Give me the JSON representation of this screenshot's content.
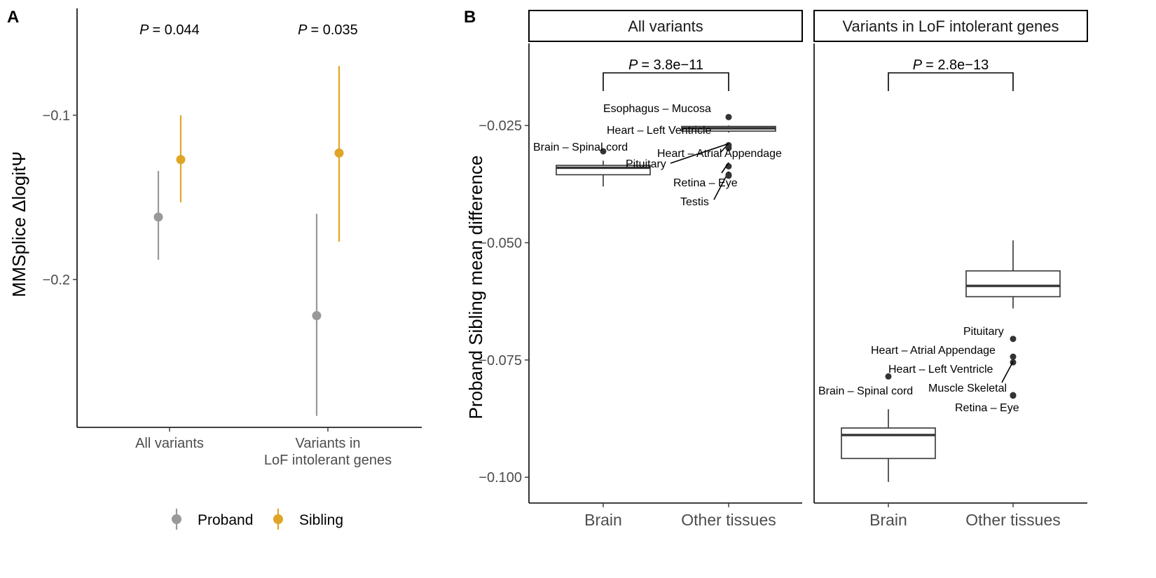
{
  "chart_data": [
    {
      "panel": "A",
      "type": "scatter",
      "ylabel": "MMSplice ΔlogitΨ",
      "ylim": [
        -0.29,
        -0.035
      ],
      "yticks": [
        -0.1,
        -0.2
      ],
      "ytick_labels": [
        "−0.1",
        "−0.2"
      ],
      "categories": [
        "All variants",
        "Variants in\nLoF intolerant genes"
      ],
      "series": [
        {
          "name": "Proband",
          "color": "#999999",
          "values": [
            -0.162,
            -0.222
          ],
          "lower": [
            -0.188,
            -0.283
          ],
          "upper": [
            -0.134,
            -0.16
          ]
        },
        {
          "name": "Sibling",
          "color": "#e0a526",
          "values": [
            -0.127,
            -0.123
          ],
          "lower": [
            -0.153,
            -0.177
          ],
          "upper": [
            -0.1,
            -0.07
          ]
        }
      ],
      "annotations": [
        {
          "category": 0,
          "prefix": "P",
          "text": "= 0.044"
        },
        {
          "category": 1,
          "prefix": "P",
          "text": "= 0.035"
        }
      ],
      "legend_position": "bottom"
    },
    {
      "panel": "B",
      "type": "box",
      "ylabel": "Proband Sibling mean difference",
      "ylim": [
        -0.1055,
        -0.0075
      ],
      "yticks": [
        -0.025,
        -0.05,
        -0.075,
        -0.1
      ],
      "ytick_labels": [
        "−0.025",
        "−0.050",
        "−0.075",
        "−0.100"
      ],
      "categories": [
        "Brain",
        "Other tissues"
      ],
      "facets": [
        {
          "title": "All variants",
          "pvalue": {
            "prefix": "P",
            "text": "= 3.8e−11"
          },
          "boxes": [
            {
              "category": "Brain",
              "whisker_low": -0.038,
              "q1": -0.0355,
              "median": -0.034,
              "q3": -0.0335,
              "whisker_high": -0.0325
            },
            {
              "category": "Other tissues",
              "whisker_low": -0.0265,
              "q1": -0.0262,
              "median": -0.0256,
              "q3": -0.0252,
              "whisker_high": -0.025
            }
          ],
          "outliers": [
            {
              "category": "Brain",
              "y": -0.0305,
              "label": "Brain – Spinal cord"
            },
            {
              "category": "Other tissues",
              "y": -0.0232,
              "label": "Esophagus – Mucosa"
            },
            {
              "category": "Other tissues",
              "y": -0.0292,
              "label": "Heart – Left Ventricle"
            },
            {
              "category": "Other tissues",
              "y": -0.0298,
              "label": "Heart – Atrial Appendage"
            },
            {
              "category": "Other tissues",
              "y": -0.0337,
              "label": "Pituitary"
            },
            {
              "category": "Other tissues",
              "y": -0.0355,
              "label": "Retina – Eye"
            },
            {
              "category": "Other tissues",
              "y": -0.0357,
              "label": "Testis"
            }
          ]
        },
        {
          "title": "Variants in LoF intolerant genes",
          "pvalue": {
            "prefix": "P",
            "text": "= 2.8e−13"
          },
          "boxes": [
            {
              "category": "Brain",
              "whisker_low": -0.101,
              "q1": -0.096,
              "median": -0.091,
              "q3": -0.0895,
              "whisker_high": -0.0855
            },
            {
              "category": "Other tissues",
              "whisker_low": -0.064,
              "q1": -0.0615,
              "median": -0.0592,
              "q3": -0.056,
              "whisker_high": -0.0495
            }
          ],
          "outliers": [
            {
              "category": "Brain",
              "y": -0.0785,
              "label": "Brain – Spinal cord"
            },
            {
              "category": "Other tissues",
              "y": -0.0705,
              "label": "Pituitary"
            },
            {
              "category": "Other tissues",
              "y": -0.0743,
              "label": "Heart – Atrial Appendage"
            },
            {
              "category": "Other tissues",
              "y": -0.0755,
              "label": "Heart – Left Ventricle"
            },
            {
              "category": "Other tissues",
              "y": -0.0825,
              "label": "Muscle Skeletal"
            },
            {
              "category": "Other tissues",
              "y": -0.0826,
              "label": "Retina – Eye"
            }
          ]
        }
      ]
    }
  ]
}
